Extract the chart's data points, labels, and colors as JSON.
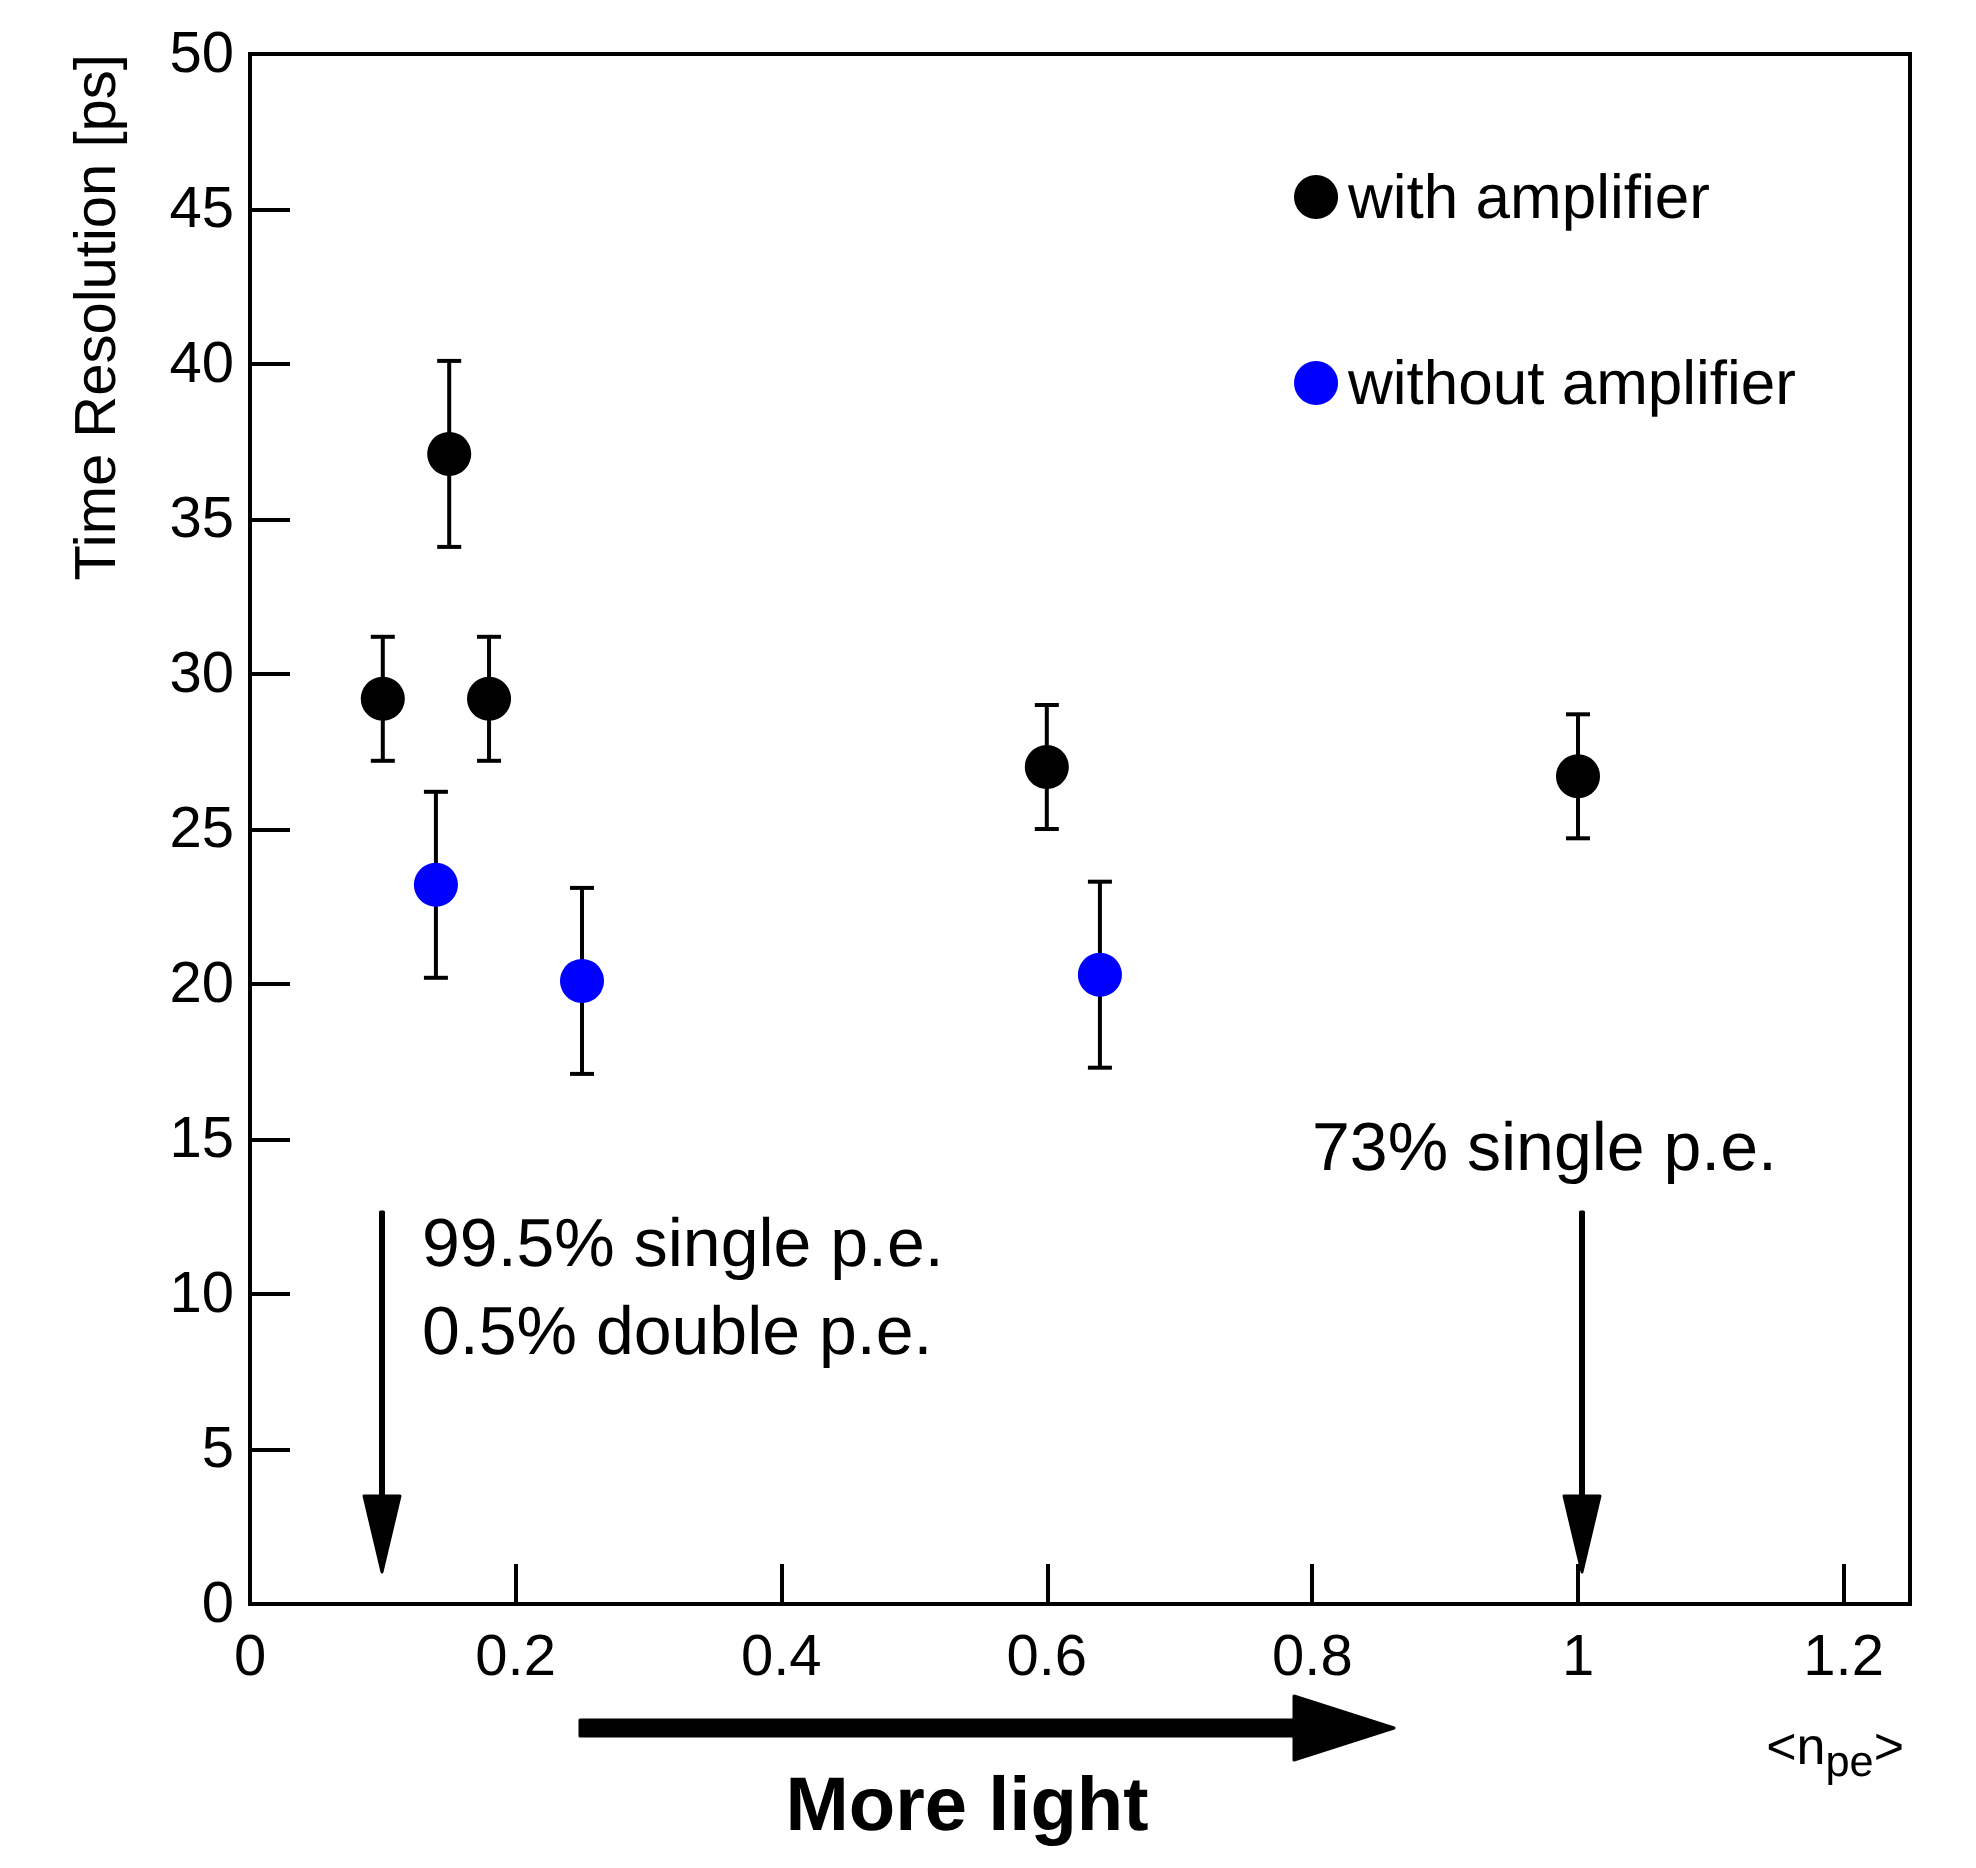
{
  "chart_data": {
    "type": "scatter",
    "xlabel": "<n$_{pe}$>",
    "ylabel": "Time Resolution [ps]",
    "xlim": [
      0,
      1.25
    ],
    "xticks": [
      0,
      0.2,
      0.4,
      0.6,
      0.8,
      1,
      1.2
    ],
    "ylim": [
      0,
      50
    ],
    "yticks": [
      0,
      5,
      10,
      15,
      20,
      25,
      30,
      35,
      40,
      45,
      50
    ],
    "grid": false,
    "legend": "top right",
    "marker": "circle",
    "series": [
      {
        "name": "with amplifier",
        "color": "#000000",
        "x": [
          0.1,
          0.15,
          0.18,
          0.6,
          1.0
        ],
        "values": [
          29.2,
          37.1,
          29.2,
          27.0,
          26.7
        ],
        "errors": [
          2,
          3,
          2,
          2,
          2
        ]
      },
      {
        "name": "without amplifier",
        "color": "#0000ff",
        "x": [
          0.14,
          0.25,
          0.64
        ],
        "values": [
          23.2,
          20.1,
          20.3
        ],
        "errors": [
          3,
          3,
          3
        ]
      }
    ],
    "annotations": [
      "99.5% single p.e.\n0.5% double p.e.",
      "73% single p.e.",
      "More light"
    ]
  }
}
